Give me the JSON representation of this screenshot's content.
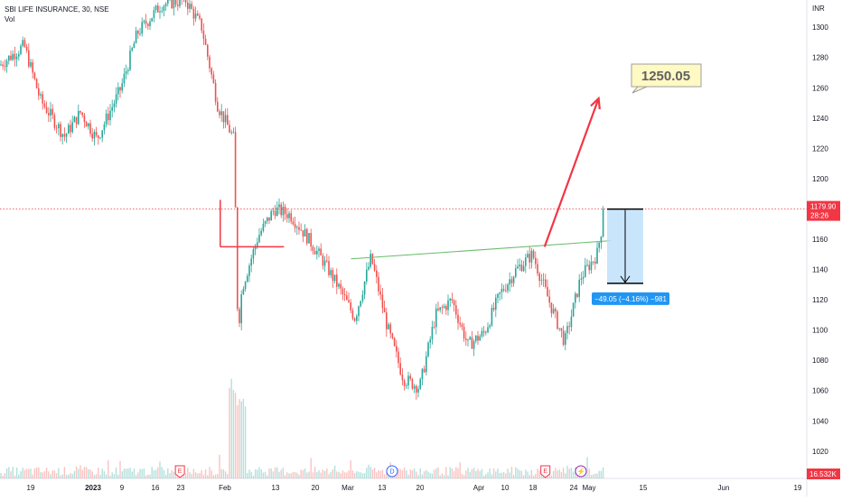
{
  "header": {
    "symbol_line": "SBI LIFE INSURANCE, 30, NSE",
    "volume_label": "Vol"
  },
  "colors": {
    "up": "#26a69a",
    "down": "#ef5350",
    "arrow": "#f23645",
    "trendline": "#66bb6a",
    "measure_fill": "#bbdefb",
    "measure_badge": "#2196f3",
    "price_tag": "#f23645",
    "target_bg": "#fff9c4"
  },
  "chart_data": {
    "type": "candlestick",
    "currency": "INR",
    "ylim": [
      1002,
      1318
    ],
    "y_ticks": [
      1020,
      1040,
      1060,
      1080,
      1100,
      1120,
      1140,
      1160,
      1180,
      1200,
      1220,
      1240,
      1260,
      1280,
      1300
    ],
    "x_ticks": [
      "19",
      "2023",
      "9",
      "16",
      "23",
      "Feb",
      "13",
      "20",
      "Mar",
      "13",
      "20",
      "Apr",
      "10",
      "18",
      "24",
      "May",
      "15",
      "Jun",
      "19"
    ],
    "price_path": [
      [
        0,
        1275
      ],
      [
        0.03,
        1288
      ],
      [
        0.05,
        1252
      ],
      [
        0.08,
        1228
      ],
      [
        0.1,
        1244
      ],
      [
        0.12,
        1226
      ],
      [
        0.15,
        1260
      ],
      [
        0.17,
        1296
      ],
      [
        0.2,
        1315
      ],
      [
        0.23,
        1318
      ],
      [
        0.25,
        1300
      ],
      [
        0.27,
        1248
      ],
      [
        0.29,
        1226
      ],
      [
        0.295,
        1098
      ],
      [
        0.3,
        1128
      ],
      [
        0.32,
        1162
      ],
      [
        0.34,
        1180
      ],
      [
        0.36,
        1176
      ],
      [
        0.38,
        1162
      ],
      [
        0.4,
        1146
      ],
      [
        0.42,
        1128
      ],
      [
        0.44,
        1108
      ],
      [
        0.46,
        1148
      ],
      [
        0.48,
        1102
      ],
      [
        0.5,
        1068
      ],
      [
        0.52,
        1062
      ],
      [
        0.54,
        1110
      ],
      [
        0.56,
        1120
      ],
      [
        0.58,
        1090
      ],
      [
        0.6,
        1098
      ],
      [
        0.62,
        1124
      ],
      [
        0.64,
        1140
      ],
      [
        0.66,
        1150
      ],
      [
        0.68,
        1120
      ],
      [
        0.7,
        1092
      ],
      [
        0.72,
        1135
      ],
      [
        0.74,
        1150
      ],
      [
        0.75,
        1179.9
      ]
    ],
    "last_price": "1179.90",
    "countdown": "28:26",
    "volume_value": "16.532K",
    "events": [
      {
        "letter": "E",
        "x": 0.223,
        "kind": "earnings"
      },
      {
        "letter": "D",
        "x": 0.486,
        "kind": "dividend"
      },
      {
        "letter": "E",
        "x": 0.676,
        "kind": "earnings"
      },
      {
        "letter": "⚡",
        "x": 0.72,
        "kind": "split"
      }
    ],
    "annotations": {
      "target": {
        "label": "1250.05",
        "price": 1250.05
      },
      "measure": {
        "label": "−49.05 (−4.16%) −981",
        "from": 1179.9,
        "to": 1130.85
      },
      "neckline": {
        "from": [
          0.435,
          1147
        ],
        "to": [
          0.757,
          1159
        ]
      },
      "red_arrow": {
        "from": [
          0.675,
          1155
        ],
        "to": [
          0.742,
          1253
        ]
      },
      "gap_marker": {
        "x": 0.273,
        "top": 1186,
        "bottom": 1155,
        "hline_to": 0.352
      }
    }
  }
}
